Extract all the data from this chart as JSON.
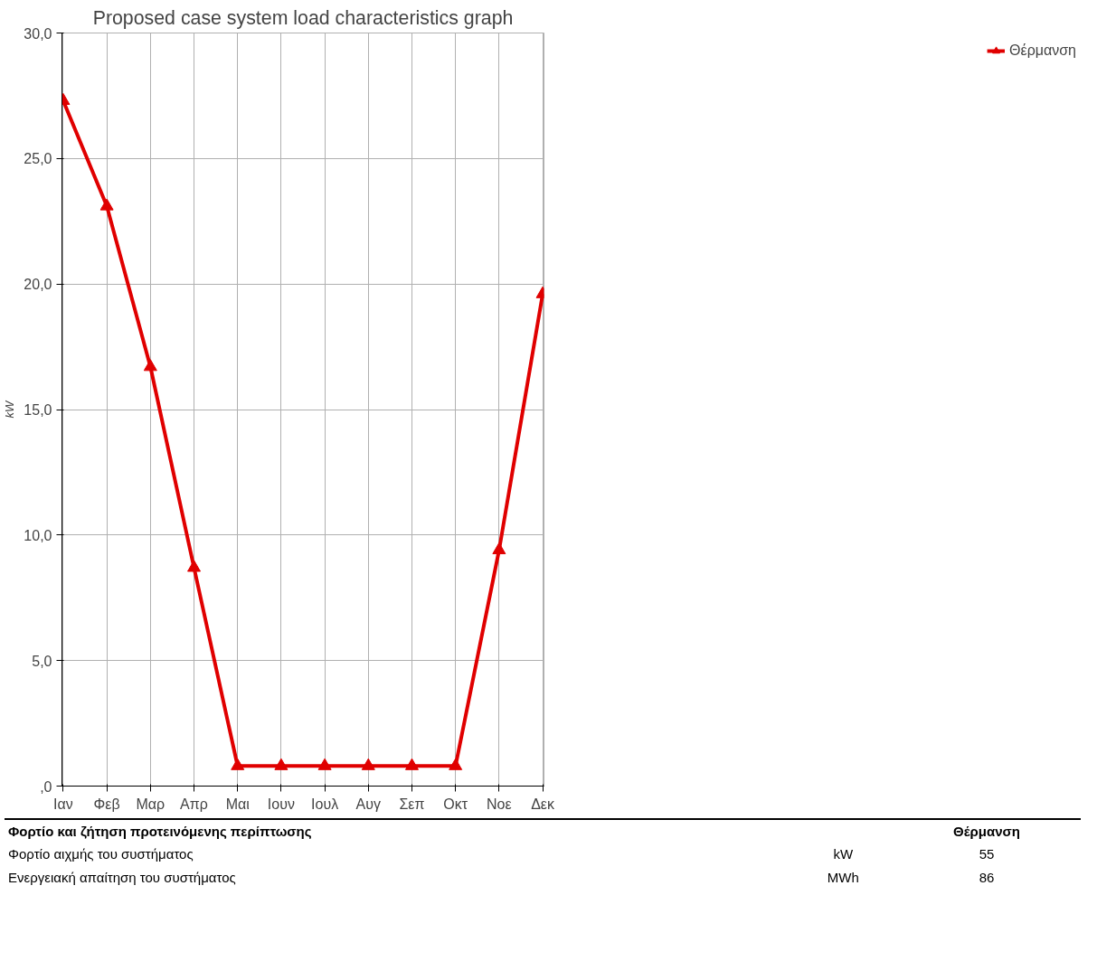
{
  "chart_data": {
    "type": "line",
    "title": "Proposed case system load characteristics graph",
    "ylabel": "kW",
    "categories": [
      "Ιαν",
      "Φεβ",
      "Μαρ",
      "Απρ",
      "Μαι",
      "Ιουν",
      "Ιουλ",
      "Αυγ",
      "Σεπ",
      "Οκτ",
      "Νοε",
      "Δεκ"
    ],
    "series": [
      {
        "name": "Θέρμανση",
        "color": "#e00000",
        "values": [
          27.3,
          23.1,
          16.7,
          8.7,
          0.8,
          0.8,
          0.8,
          0.8,
          0.8,
          0.8,
          9.4,
          19.6
        ]
      }
    ],
    "ylim": [
      0,
      30
    ],
    "yticks": [
      {
        "value": 0,
        "label": ",0"
      },
      {
        "value": 5,
        "label": "5,0"
      },
      {
        "value": 10,
        "label": "10,0"
      },
      {
        "value": 15,
        "label": "15,0"
      },
      {
        "value": 20,
        "label": "20,0"
      },
      {
        "value": 25,
        "label": "25,0"
      },
      {
        "value": 30,
        "label": "30,0"
      }
    ],
    "grid": true,
    "legend": "right",
    "marker": "triangle",
    "line_style": "solid",
    "annotations": [
      "Φορτίο και ζήτηση προτεινόμενης περίπτωσης",
      "Θέρμανση",
      "Φορτίο αιχμής του συστήματος",
      "kW",
      "55",
      "Ενεργειακή απαίτηση του συστήματος",
      "MWh",
      "86"
    ]
  }
}
